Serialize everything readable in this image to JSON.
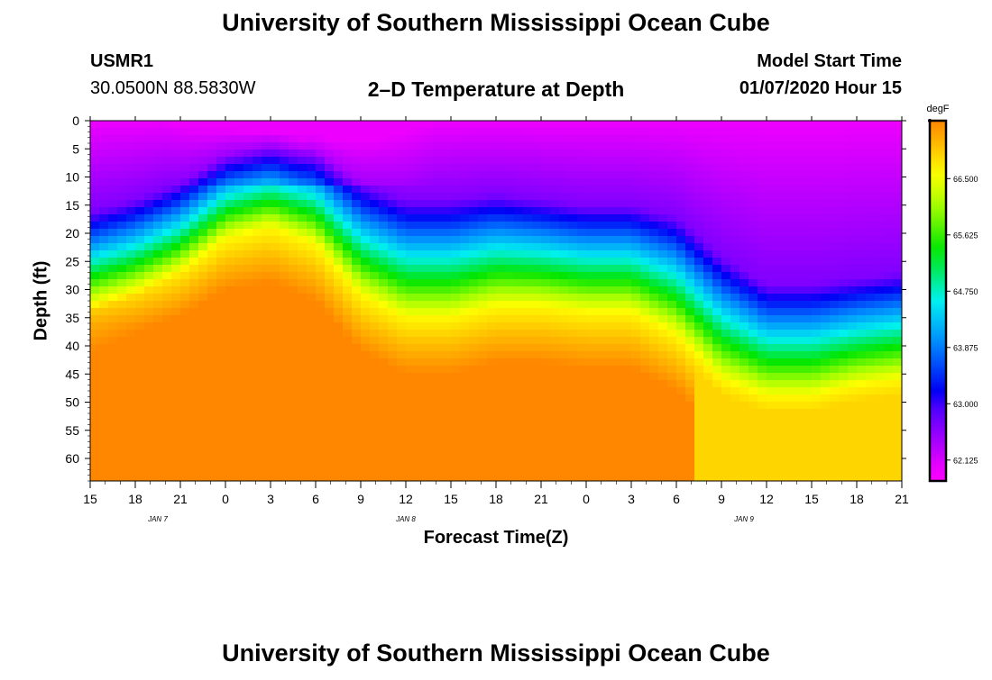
{
  "page": {
    "title_top": "University of Southern Mississippi Ocean Cube",
    "title_bottom": "University of Southern Mississippi Ocean Cube",
    "station_id": "USMR1",
    "station_coords": "30.0500N 88.5830W",
    "plot_title": "2–D Temperature at Depth",
    "model_start_label": "Model Start Time",
    "model_start_value": "01/07/2020 Hour 15"
  },
  "chart_data": {
    "type": "heatmap",
    "title": "2–D Temperature at Depth",
    "xlabel": "Forecast Time(Z)",
    "ylabel": "Depth (ft)",
    "x_tick_labels": [
      "15",
      "18",
      "21",
      "0",
      "3",
      "6",
      "9",
      "12",
      "15",
      "18",
      "21",
      "0",
      "3",
      "6",
      "9",
      "12",
      "15",
      "18",
      "21"
    ],
    "date_labels": [
      {
        "label": "JAN 7",
        "at_tick": 1.5
      },
      {
        "label": "JAN 8",
        "at_tick": 7
      },
      {
        "label": "JAN 9",
        "at_tick": 14.5
      }
    ],
    "y_ticks": [
      0,
      5,
      10,
      15,
      20,
      25,
      30,
      35,
      40,
      45,
      50,
      55,
      60
    ],
    "ylim": [
      0,
      64
    ],
    "x_hours": [
      0,
      54
    ],
    "colorbar": {
      "unit": "degF",
      "tick_labels": [
        "66.500",
        "65.625",
        "64.750",
        "63.875",
        "63.000",
        "62.125"
      ],
      "tick_values": [
        66.5,
        65.625,
        64.75,
        63.875,
        63.0,
        62.125
      ],
      "vmin": 61.8,
      "vmax": 67.4
    },
    "thermocline_depth_ft": [
      {
        "hour": 0,
        "top": 16,
        "bottom": 34
      },
      {
        "hour": 3,
        "top": 14,
        "bottom": 31
      },
      {
        "hour": 6,
        "top": 11,
        "bottom": 27
      },
      {
        "hour": 9,
        "top": 6,
        "bottom": 21
      },
      {
        "hour": 12,
        "top": 4,
        "bottom": 19
      },
      {
        "hour": 15,
        "top": 5,
        "bottom": 22
      },
      {
        "hour": 18,
        "top": 11,
        "bottom": 31
      },
      {
        "hour": 21,
        "top": 14,
        "bottom": 35
      },
      {
        "hour": 24,
        "top": 14,
        "bottom": 35
      },
      {
        "hour": 27,
        "top": 13,
        "bottom": 33
      },
      {
        "hour": 30,
        "top": 14,
        "bottom": 33
      },
      {
        "hour": 33,
        "top": 15,
        "bottom": 34
      },
      {
        "hour": 36,
        "top": 15,
        "bottom": 34
      },
      {
        "hour": 39,
        "top": 17,
        "bottom": 38
      },
      {
        "hour": 42,
        "top": 24,
        "bottom": 46
      },
      {
        "hour": 45,
        "top": 29,
        "bottom": 49
      },
      {
        "hour": 48,
        "top": 29,
        "bottom": 49
      },
      {
        "hour": 51,
        "top": 28,
        "bottom": 47
      },
      {
        "hour": 54,
        "top": 27,
        "bottom": 46
      }
    ],
    "surface_temp_min_degF": 62.0,
    "deep_temp_max_degF": 67.4
  }
}
